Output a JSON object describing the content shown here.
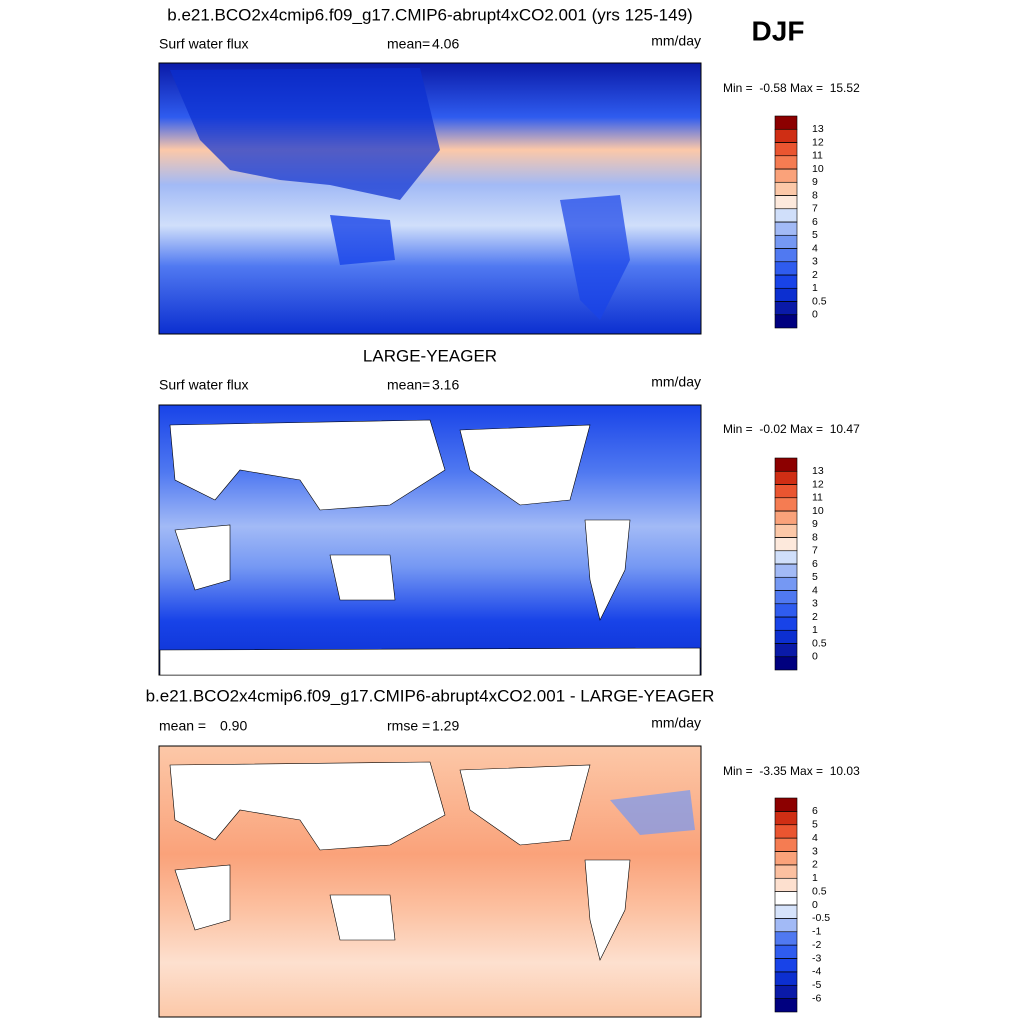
{
  "figure": {
    "season": "DJF",
    "panels": [
      {
        "title": "b.e21.BCO2x4cmip6.f09_g17.CMIP6-abrupt4xCO2.001 (yrs 125-149)",
        "variable": "Surf water flux",
        "stat_label": "mean=",
        "stat_value": "4.06",
        "units": "mm/day",
        "min_max": "Min =  -0.58 Max =  15.52",
        "colorbar": {
          "levels": [
            0,
            0.5,
            1,
            2,
            3,
            4,
            5,
            6,
            7,
            8,
            9,
            10,
            11,
            12,
            13
          ],
          "colors": [
            "#00007f",
            "#0a1aa8",
            "#0c2fd0",
            "#1843e8",
            "#2f5cef",
            "#5079f1",
            "#7598f3",
            "#a2baf6",
            "#d0dffa",
            "#fde9dc",
            "#fcc8a8",
            "#faa27a",
            "#f57c52",
            "#ea5530",
            "#cf2e14",
            "#8c0000"
          ]
        }
      },
      {
        "title": "LARGE-YEAGER",
        "variable": "Surf water flux",
        "stat_label": "mean=",
        "stat_value": "3.16",
        "units": "mm/day",
        "min_max": "Min =  -0.02 Max =  10.47",
        "colorbar": {
          "levels": [
            0,
            0.5,
            1,
            2,
            3,
            4,
            5,
            6,
            7,
            8,
            9,
            10,
            11,
            12,
            13
          ],
          "colors": [
            "#00007f",
            "#0a1aa8",
            "#0c2fd0",
            "#1843e8",
            "#2f5cef",
            "#5079f1",
            "#7598f3",
            "#a2baf6",
            "#d0dffa",
            "#fde9dc",
            "#fcc8a8",
            "#faa27a",
            "#f57c52",
            "#ea5530",
            "#cf2e14",
            "#8c0000"
          ]
        }
      },
      {
        "title": "b.e21.BCO2x4cmip6.f09_g17.CMIP6-abrupt4xCO2.001 - LARGE-YEAGER",
        "stat_label": "mean =",
        "stat_value": "0.90",
        "stat2_label": "rmse =",
        "stat2_value": "1.29",
        "units": "mm/day",
        "min_max": "Min =  -3.35 Max =  10.03",
        "colorbar": {
          "levels": [
            -6,
            -5,
            -4,
            -3,
            -2,
            -1,
            -0.5,
            0,
            0.5,
            1,
            2,
            3,
            4,
            5,
            6
          ],
          "colors": [
            "#00007f",
            "#0a1aa8",
            "#0c2fd0",
            "#1843e8",
            "#2f5cef",
            "#5079f1",
            "#a2baf6",
            "#d6e3fb",
            "#ffffff",
            "#fde0cf",
            "#fcc0a0",
            "#faa27a",
            "#f57c52",
            "#ea5530",
            "#cf2e14",
            "#8c0000"
          ]
        }
      }
    ]
  }
}
